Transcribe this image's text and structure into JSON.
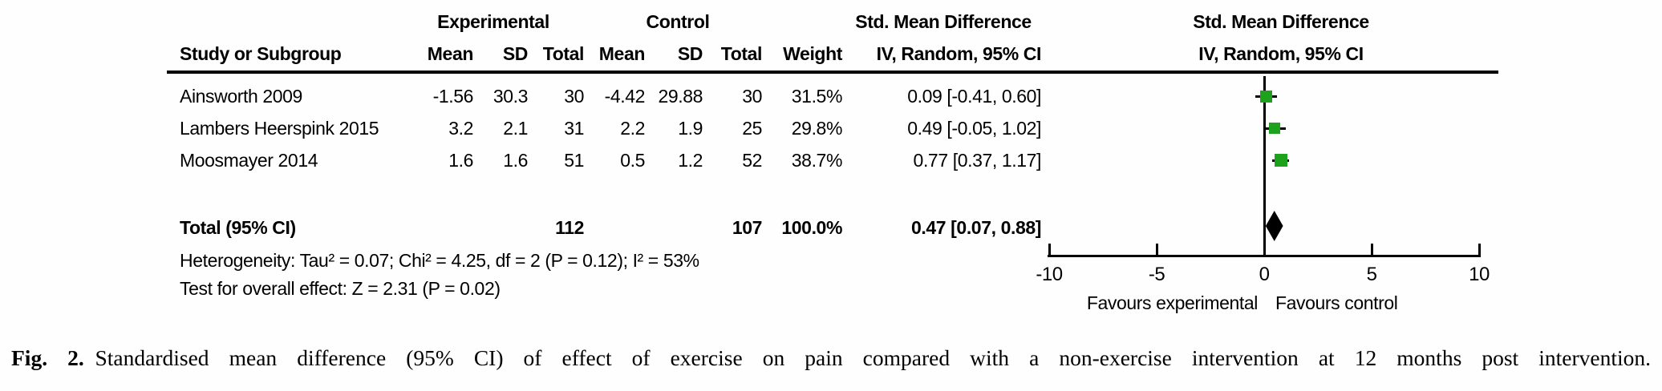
{
  "headers": {
    "study": "Study or Subgroup",
    "experimental": "Experimental",
    "control": "Control",
    "mean": "Mean",
    "sd": "SD",
    "total": "Total",
    "weight": "Weight",
    "effect": "Std. Mean Difference",
    "method": "IV, Random, 95% CI"
  },
  "chart_data": {
    "type": "forest",
    "effect_measure": "Std. Mean Difference",
    "model": "IV, Random, 95% CI",
    "studies": [
      {
        "name": "Ainsworth 2009",
        "exp_mean": "-1.56",
        "exp_sd": "30.3",
        "exp_total": "30",
        "ctrl_mean": "-4.42",
        "ctrl_sd": "29.88",
        "ctrl_total": "30",
        "weight": "31.5%",
        "weight_pct": 31.5,
        "ci_text": "0.09 [-0.41, 0.60]",
        "smd": 0.09,
        "ci_low": -0.41,
        "ci_high": 0.6
      },
      {
        "name": "Lambers Heerspink 2015",
        "exp_mean": "3.2",
        "exp_sd": "2.1",
        "exp_total": "31",
        "ctrl_mean": "2.2",
        "ctrl_sd": "1.9",
        "ctrl_total": "25",
        "weight": "29.8%",
        "weight_pct": 29.8,
        "ci_text": "0.49 [-0.05, 1.02]",
        "smd": 0.49,
        "ci_low": -0.05,
        "ci_high": 1.02
      },
      {
        "name": "Moosmayer 2014",
        "exp_mean": "1.6",
        "exp_sd": "1.6",
        "exp_total": "51",
        "ctrl_mean": "0.5",
        "ctrl_sd": "1.2",
        "ctrl_total": "52",
        "weight": "38.7%",
        "weight_pct": 38.7,
        "ci_text": "0.77 [0.37, 1.17]",
        "smd": 0.77,
        "ci_low": 0.37,
        "ci_high": 1.17
      }
    ],
    "total": {
      "label": "Total (95% CI)",
      "exp_total": "112",
      "ctrl_total": "107",
      "weight": "100.0%",
      "ci_text": "0.47 [0.07, 0.88]",
      "smd": 0.47,
      "ci_low": 0.07,
      "ci_high": 0.88
    },
    "heterogeneity": "Heterogeneity: Tau² = 0.07; Chi² = 4.25, df = 2 (P = 0.12); I² = 53%",
    "overall_effect": "Test for overall effect: Z = 2.31 (P = 0.02)",
    "axis": {
      "xlim": [
        -10,
        10
      ],
      "ticks": [
        "-10",
        "-5",
        "0",
        "5",
        "10"
      ],
      "tick_values": [
        -10,
        -5,
        0,
        5,
        10
      ],
      "favours_left": "Favours experimental",
      "favours_right": "Favours control"
    },
    "marker_color": "#1ea21e",
    "diamond_color": "#000000"
  },
  "caption": {
    "label": "Fig. 2.",
    "text": "Standardised mean difference (95% CI) of effect of exercise on pain compared with a non-exercise intervention at 12 months post intervention."
  }
}
